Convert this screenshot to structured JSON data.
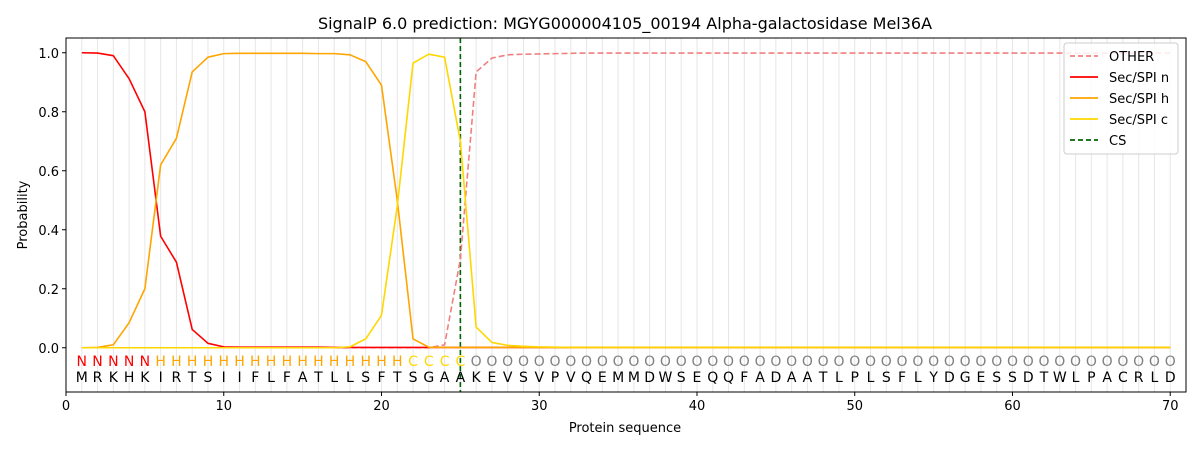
{
  "chart_data": {
    "type": "line",
    "title": "SignalP 6.0 prediction: MGYG000004105_00194 Alpha-galactosidase Mel36A",
    "xlabel": "Protein sequence",
    "ylabel": "Probability",
    "xlim": [
      0,
      71
    ],
    "ylim": [
      -0.15,
      1.05
    ],
    "xticks": [
      0,
      10,
      20,
      30,
      40,
      50,
      60,
      70
    ],
    "yticks": [
      0.0,
      0.2,
      0.4,
      0.6,
      0.8,
      1.0
    ],
    "xtick_labels": [
      "0",
      "10",
      "20",
      "30",
      "40",
      "50",
      "60",
      "70"
    ],
    "ytick_labels": [
      "0.0",
      "0.2",
      "0.4",
      "0.6",
      "0.8",
      "1.0"
    ],
    "legend_position": "top-right",
    "sequence": [
      "M",
      "R",
      "K",
      "H",
      "K",
      "I",
      "R",
      "T",
      "S",
      "I",
      "I",
      "F",
      "L",
      "F",
      "A",
      "T",
      "L",
      "L",
      "S",
      "F",
      "T",
      "S",
      "G",
      "A",
      "A",
      "K",
      "E",
      "V",
      "S",
      "V",
      "P",
      "V",
      "Q",
      "E",
      "M",
      "M",
      "D",
      "W",
      "S",
      "E",
      "Q",
      "Q",
      "F",
      "A",
      "D",
      "A",
      "A",
      "T",
      "L",
      "P",
      "L",
      "S",
      "F",
      "L",
      "Y",
      "D",
      "G",
      "E",
      "S",
      "S",
      "D",
      "T",
      "W",
      "L",
      "P",
      "A",
      "C",
      "R",
      "L",
      "D"
    ],
    "region_labels": [
      "N",
      "N",
      "N",
      "N",
      "N",
      "H",
      "H",
      "H",
      "H",
      "H",
      "H",
      "H",
      "H",
      "H",
      "H",
      "H",
      "H",
      "H",
      "H",
      "H",
      "H",
      "C",
      "C",
      "C",
      "C",
      "O",
      "O",
      "O",
      "O",
      "O",
      "O",
      "O",
      "O",
      "O",
      "O",
      "O",
      "O",
      "O",
      "O",
      "O",
      "O",
      "O",
      "O",
      "O",
      "O",
      "O",
      "O",
      "O",
      "O",
      "O",
      "O",
      "O",
      "O",
      "O",
      "O",
      "O",
      "O",
      "O",
      "O",
      "O",
      "O",
      "O",
      "O",
      "O",
      "O",
      "O",
      "O",
      "O",
      "O",
      "O"
    ],
    "region_colors": {
      "N": "#ff0000",
      "H": "#ffa500",
      "C": "#ffd700",
      "O": "#808080"
    },
    "cleavage_site": 25,
    "series": [
      {
        "name": "OTHER",
        "color": "#f08080",
        "dash": true,
        "values": [
          0,
          0,
          0,
          0,
          0,
          0,
          0,
          0,
          0,
          0,
          0,
          0,
          0,
          0,
          0,
          0,
          0,
          0,
          0,
          0,
          0,
          0,
          0,
          0.01,
          0.3,
          0.935,
          0.982,
          0.993,
          0.995,
          0.996,
          0.997,
          0.998,
          0.999,
          0.999,
          0.999,
          0.999,
          0.999,
          0.999,
          0.999,
          0.999,
          0.999,
          0.999,
          0.999,
          0.999,
          0.999,
          0.999,
          0.999,
          0.999,
          0.999,
          0.999,
          0.999,
          0.999,
          0.999,
          0.999,
          0.999,
          0.999,
          0.999,
          0.999,
          0.999,
          0.999,
          0.999,
          0.999,
          0.999,
          0.999,
          0.999,
          0.999,
          0.999,
          0.999,
          0.999,
          0.999
        ]
      },
      {
        "name": "Sec/SPI n",
        "color": "#ff0000",
        "dash": false,
        "values": [
          1.0,
          0.999,
          0.99,
          0.912,
          0.8,
          0.378,
          0.29,
          0.062,
          0.015,
          0.003,
          0.002,
          0.002,
          0.002,
          0.002,
          0.002,
          0.002,
          0.001,
          0.001,
          0.001,
          0.001,
          0.001,
          0.001,
          0.001,
          0.001,
          0.001,
          0.001,
          0.001,
          0.001,
          0.001,
          0.001,
          0.001,
          0.001,
          0.001,
          0.001,
          0.001,
          0.001,
          0.001,
          0.001,
          0.001,
          0.001,
          0.001,
          0.001,
          0.001,
          0.001,
          0.001,
          0.001,
          0.001,
          0.001,
          0.001,
          0.001,
          0.001,
          0.001,
          0.001,
          0.001,
          0.001,
          0.001,
          0.001,
          0.001,
          0.001,
          0.001,
          0.001,
          0.001,
          0.001,
          0.001,
          0.001,
          0.001,
          0.001,
          0.001,
          0.001,
          0.001
        ]
      },
      {
        "name": "Sec/SPI h",
        "color": "#ffa500",
        "dash": false,
        "values": [
          0.0,
          0.001,
          0.01,
          0.085,
          0.2,
          0.62,
          0.71,
          0.935,
          0.985,
          0.997,
          0.998,
          0.998,
          0.998,
          0.998,
          0.998,
          0.997,
          0.997,
          0.993,
          0.97,
          0.89,
          0.5,
          0.03,
          0.002,
          0.001,
          0.001,
          0.001,
          0.001,
          0.001,
          0.001,
          0.001,
          0.001,
          0.001,
          0.001,
          0.001,
          0.001,
          0.001,
          0.001,
          0.001,
          0.001,
          0.001,
          0.001,
          0.001,
          0.001,
          0.001,
          0.001,
          0.001,
          0.001,
          0.001,
          0.001,
          0.001,
          0.001,
          0.001,
          0.001,
          0.001,
          0.001,
          0.001,
          0.001,
          0.001,
          0.001,
          0.001,
          0.001,
          0.001,
          0.001,
          0.001,
          0.001,
          0.001,
          0.001,
          0.001,
          0.001,
          0.001
        ]
      },
      {
        "name": "Sec/SPI c",
        "color": "#ffd700",
        "dash": false,
        "values": [
          0,
          0,
          0,
          0,
          0,
          0,
          0,
          0,
          0,
          0,
          0,
          0,
          0,
          0,
          0,
          0,
          0,
          0.003,
          0.03,
          0.11,
          0.48,
          0.965,
          0.995,
          0.985,
          0.7,
          0.07,
          0.018,
          0.008,
          0.005,
          0.003,
          0.002,
          0.001,
          0.001,
          0.001,
          0.001,
          0.001,
          0.001,
          0.001,
          0.001,
          0.001,
          0.001,
          0.001,
          0.001,
          0.001,
          0.001,
          0.001,
          0.001,
          0.001,
          0.001,
          0.001,
          0.001,
          0.001,
          0.001,
          0.001,
          0.001,
          0.001,
          0.001,
          0.001,
          0.001,
          0.001,
          0.001,
          0.001,
          0.001,
          0.001,
          0.001,
          0.001,
          0.001,
          0.001,
          0.001,
          0.001
        ]
      }
    ],
    "legend": [
      {
        "label": "OTHER",
        "color": "#f08080",
        "style": "dashed"
      },
      {
        "label": "Sec/SPI n",
        "color": "#ff0000",
        "style": "solid"
      },
      {
        "label": "Sec/SPI h",
        "color": "#ffa500",
        "style": "solid"
      },
      {
        "label": "Sec/SPI c",
        "color": "#ffd700",
        "style": "solid"
      },
      {
        "label": "CS",
        "color": "#006400",
        "style": "dashed"
      }
    ]
  }
}
